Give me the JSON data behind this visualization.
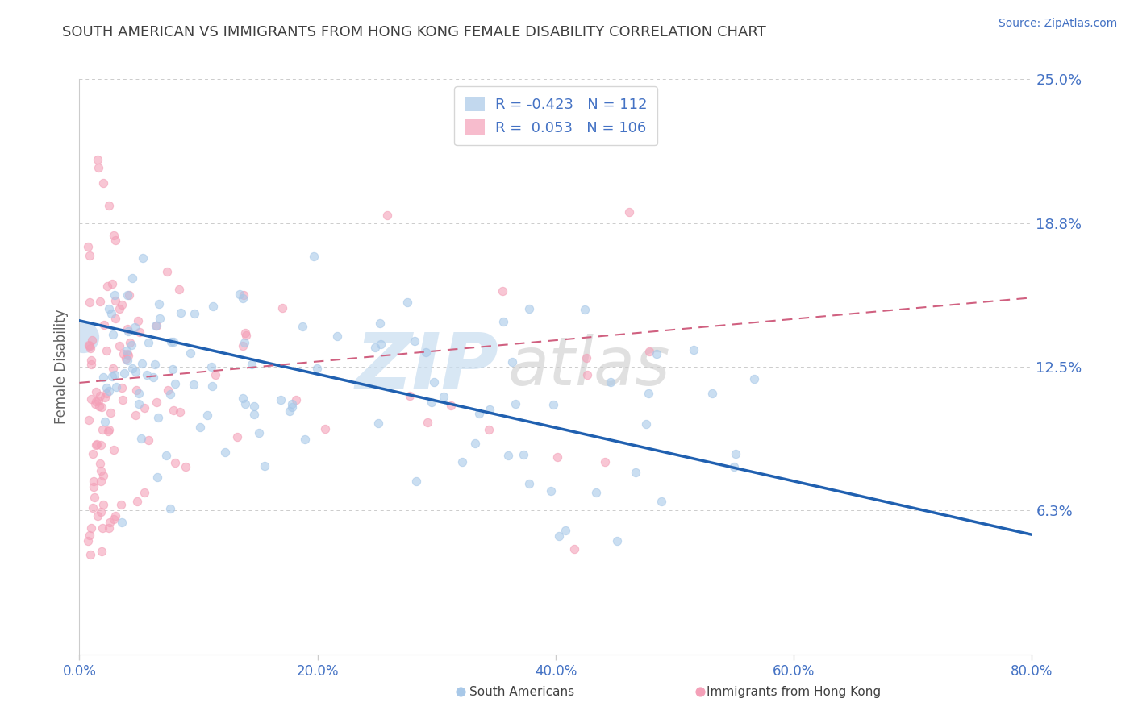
{
  "title": "SOUTH AMERICAN VS IMMIGRANTS FROM HONG KONG FEMALE DISABILITY CORRELATION CHART",
  "source": "Source: ZipAtlas.com",
  "ylabel": "Female Disability",
  "xmin": 0.0,
  "xmax": 0.8,
  "ymin": 0.0,
  "ymax": 0.25,
  "ytick_vals": [
    0.0,
    0.0625,
    0.125,
    0.1875,
    0.25
  ],
  "ytick_labels": [
    "",
    "6.3%",
    "12.5%",
    "18.8%",
    "25.0%"
  ],
  "xtick_vals": [
    0.0,
    0.2,
    0.4,
    0.6,
    0.8
  ],
  "xtick_labels": [
    "0.0%",
    "20.0%",
    "40.0%",
    "60.0%",
    "80.0%"
  ],
  "legend_R1": "-0.423",
  "legend_N1": "112",
  "legend_R2": "0.053",
  "legend_N2": "106",
  "blue_color": "#a8c8e8",
  "pink_color": "#f4a0b8",
  "blue_line_color": "#2060b0",
  "pink_line_color": "#d06080",
  "title_color": "#404040",
  "label_color": "#4472c4",
  "grid_color": "#cccccc",
  "source_color": "#4472c4",
  "blue_line_y0": 0.145,
  "blue_line_y1": 0.052,
  "pink_line_y0": 0.118,
  "pink_line_y1": 0.155
}
